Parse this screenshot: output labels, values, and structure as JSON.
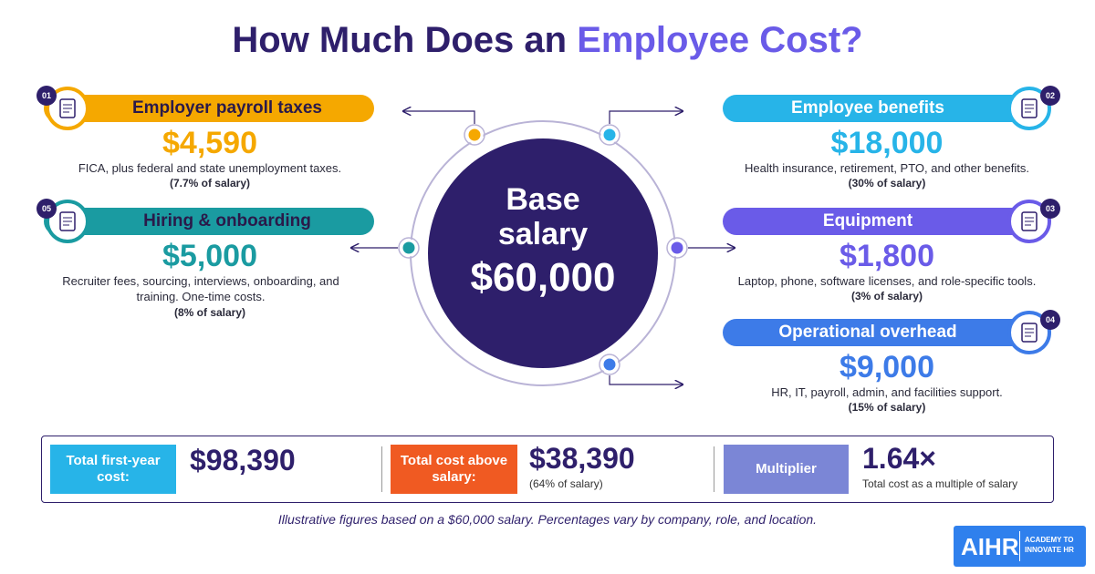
{
  "header": {
    "title_start": "How Much Does an",
    "title_highlight": "Employee Cost?"
  },
  "center": {
    "label_line1": "Base",
    "label_line2": "salary",
    "amount": "$60,000"
  },
  "cards": [
    {
      "number": "01",
      "title": "Employer payroll taxes",
      "amount": "$4,590",
      "description": "FICA, plus federal and state unemployment taxes.",
      "percent": "(7.7% of salary)"
    },
    {
      "number": "05",
      "title": "Hiring & onboarding",
      "amount": "$5,000",
      "description": "Recruiter fees, sourcing, interviews, onboarding, and training. One-time costs.",
      "percent": "(8% of salary)"
    },
    {
      "number": "02",
      "title": "Employee benefits",
      "amount": "$18,000",
      "description": "Health insurance, retirement, PTO, and other benefits.",
      "percent": "(30% of salary)"
    },
    {
      "number": "03",
      "title": "Equipment",
      "amount": "$1,800",
      "description": "Laptop, phone, software licenses, and role-specific tools.",
      "percent": "(3% of salary)"
    },
    {
      "number": "04",
      "title": "Operational overhead",
      "amount": "$9,000",
      "description": "HR, IT, payroll, admin, and facilities support.",
      "percent": "(15% of salary)"
    }
  ],
  "summary": [
    {
      "label": "Total first-year cost:",
      "value": "$98,390"
    },
    {
      "label": "Total cost above salary:",
      "value": "$38,390",
      "note": "(64% of salary)"
    },
    {
      "label": "Multiplier",
      "value": "1.64×",
      "note": "Total cost as a multiple of salary"
    }
  ],
  "footnote": "Illustrative figures based on a $60,000 salary. Percentages vary by company, role, and location.",
  "logo": {
    "name": "AIHR",
    "tagline": "ACADEMY TO INNOVATE HR"
  }
}
